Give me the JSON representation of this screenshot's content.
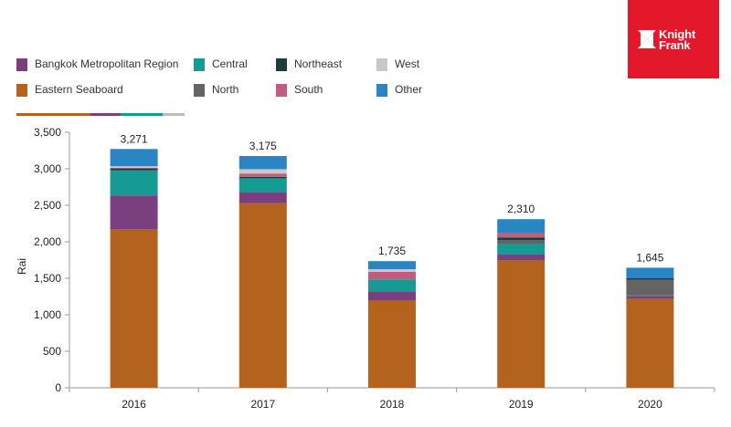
{
  "logo": {
    "line1": "Knight",
    "line2": "Frank",
    "color": "#e3192b"
  },
  "legend": [
    {
      "name": "Bangkok Metropolitan Region",
      "color": "#7a3f7f"
    },
    {
      "name": "Central",
      "color": "#169b94"
    },
    {
      "name": "Northeast",
      "color": "#1e3c3c"
    },
    {
      "name": "West",
      "color": "#c8c8c8"
    },
    {
      "name": "Eastern Seaboard",
      "color": "#b4631e"
    },
    {
      "name": "North",
      "color": "#646464"
    },
    {
      "name": "South",
      "color": "#c55b7f"
    },
    {
      "name": "Other",
      "color": "#2b84c4"
    }
  ],
  "chart_data": {
    "type": "bar",
    "stacked": true,
    "categories": [
      "2016",
      "2017",
      "2018",
      "2019",
      "2020"
    ],
    "ylabel": "Rai",
    "ylim": [
      0,
      3500
    ],
    "yticks": [
      0,
      500,
      1000,
      1500,
      2000,
      2500,
      3000,
      3500
    ],
    "ytick_labels": [
      "0",
      "500",
      "1,000",
      "1,500",
      "2,000",
      "2,500",
      "3,000",
      "3,500"
    ],
    "grid": false,
    "legend_position": "top",
    "series": [
      {
        "name": "Eastern Seaboard",
        "color": "#b4631e",
        "values": [
          2170,
          2530,
          1200,
          1745,
          1225
        ]
      },
      {
        "name": "Bangkok Metropolitan Region",
        "color": "#7a3f7f",
        "values": [
          465,
          150,
          120,
          85,
          35
        ]
      },
      {
        "name": "Central",
        "color": "#169b94",
        "values": [
          345,
          190,
          165,
          145,
          10
        ]
      },
      {
        "name": "North",
        "color": "#646464",
        "values": [
          0,
          0,
          0,
          50,
          210
        ]
      },
      {
        "name": "Northeast",
        "color": "#1e3c3c",
        "values": [
          25,
          20,
          0,
          35,
          20
        ]
      },
      {
        "name": "South",
        "color": "#c55b7f",
        "values": [
          10,
          45,
          105,
          65,
          0
        ]
      },
      {
        "name": "West",
        "color": "#c8c8c8",
        "values": [
          20,
          60,
          35,
          0,
          0
        ]
      },
      {
        "name": "Other",
        "color": "#2b84c4",
        "values": [
          236,
          180,
          110,
          185,
          145
        ]
      }
    ],
    "totals": [
      "3,271",
      "3,175",
      "1,735",
      "2,310",
      "1,645"
    ]
  }
}
